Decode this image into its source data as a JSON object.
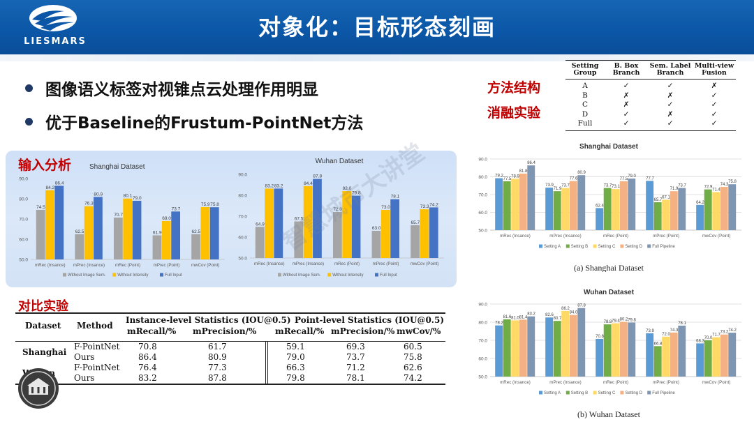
{
  "header": {
    "logo_text": "LIESMARS",
    "title": "对象化：目标形态刻画"
  },
  "bullets": [
    "图像语义标签对视锥点云处理作用明显",
    "优于Baseline的Frustum-PointNet方法"
  ],
  "labels": {
    "method_structure": "方法结构",
    "ablation_experiment": "消融实验",
    "input_analysis": "输入分析",
    "comparison_experiment": "对比实验",
    "watermark": "智慧城市大讲堂"
  },
  "ablation_table": {
    "headers": [
      "Setting Group",
      "B. Box Branch",
      "Sem. Label Branch",
      "Multi-view Fusion"
    ],
    "rows": [
      [
        "A",
        "✓",
        "✓",
        "✗"
      ],
      [
        "B",
        "✗",
        "✗",
        "✓"
      ],
      [
        "C",
        "✗",
        "✓",
        "✓"
      ],
      [
        "D",
        "✓",
        "✗",
        "✓"
      ],
      [
        "Full",
        "✓",
        "✓",
        "✓"
      ]
    ]
  },
  "comparison_table": {
    "group_headers": [
      "Instance-level Statistics (IOU@0.5)",
      "Point-level Statistics (IOU@0.5)"
    ],
    "columns": [
      "Dataset",
      "Method",
      "mRecall/%",
      "mPrecision/%",
      "mRecall/%",
      "mPrecision/%",
      "mwCov/%"
    ],
    "rows": [
      {
        "dataset": "Shanghai",
        "method": "F-PointNet",
        "values": [
          "70.8",
          "61.7",
          "59.1",
          "69.3",
          "60.5"
        ]
      },
      {
        "dataset": "",
        "method": "Ours",
        "values": [
          "86.4",
          "80.9",
          "79.0",
          "73.7",
          "75.8"
        ]
      },
      {
        "dataset": "Wuhan",
        "method": "F-PointNet",
        "values": [
          "76.4",
          "77.3",
          "66.3",
          "71.2",
          "62.6"
        ]
      },
      {
        "dataset": "",
        "method": "Ours",
        "values": [
          "83.2",
          "87.8",
          "79.8",
          "78.1",
          "74.2"
        ]
      }
    ]
  },
  "chart_data": [
    {
      "type": "bar",
      "title": "Shanghai Dataset",
      "categories": [
        "mRec (Insance)",
        "mPrec (Insance)",
        "mRec (Point)",
        "mPrec (Point)",
        "mwCov (Point)"
      ],
      "series": [
        {
          "name": "Without Image Sem.",
          "color": "#a5a5a5",
          "values": [
            74.5,
            62.5,
            70.7,
            61.9,
            62.5
          ]
        },
        {
          "name": "Without Intensity",
          "color": "#ffc000",
          "values": [
            84.2,
            76.3,
            80.1,
            69.0,
            75.9
          ]
        },
        {
          "name": "Full Input",
          "color": "#4472c4",
          "values": [
            86.4,
            80.9,
            79.0,
            73.7,
            75.8
          ]
        }
      ],
      "value_labels": [
        [
          "74.5",
          "62.5",
          "70.7",
          "61.9",
          "62.5"
        ],
        [
          "84.2",
          "76.3",
          "80.1",
          "69.0",
          "75.9"
        ],
        [
          "86.4",
          "80.9",
          "79.0",
          "73.7",
          "75.8"
        ]
      ],
      "y_ticks": [
        "50.0",
        "60.0",
        "70.0",
        "80.0",
        "90.0"
      ],
      "ylim": [
        50,
        90
      ],
      "legend": "bottom",
      "grid": false
    },
    {
      "type": "bar",
      "title": "Wuhan Dataset",
      "categories": [
        "mRec (Insance)",
        "mPrec (Insance)",
        "mRec (Point)",
        "mPrec (Point)",
        "mwCov (Point)"
      ],
      "series": [
        {
          "name": "Without Image Sem.",
          "color": "#a5a5a5",
          "values": [
            64.9,
            67.5,
            72.0,
            63.0,
            65.7
          ]
        },
        {
          "name": "Without Intensity",
          "color": "#ffc000",
          "values": [
            83.2,
            84.4,
            82.0,
            73.0,
            73.3
          ]
        },
        {
          "name": "Full Input",
          "color": "#4472c4",
          "values": [
            83.2,
            87.8,
            79.8,
            78.1,
            74.2
          ]
        }
      ],
      "value_labels": [
        [
          "64.9",
          "67.5",
          "72.0",
          "63.0",
          "65.7"
        ],
        [
          "83.2",
          "84.4",
          "82.0",
          "73.0",
          "73.3"
        ],
        [
          "83.2",
          "87.8",
          "79.8",
          "78.1",
          "74.2"
        ]
      ],
      "y_ticks": [
        "50.0",
        "60.0",
        "70.0",
        "80.0",
        "90.0"
      ],
      "ylim": [
        50,
        90
      ],
      "legend": "bottom",
      "grid": false
    },
    {
      "type": "bar",
      "title": "Shanghai Dataset",
      "caption": "(a) Shanghai Dataset",
      "categories": [
        "mRec (Insance)",
        "mPrec (Insance)",
        "mRec (Point)",
        "mPrec (Point)",
        "mwCov (Point)"
      ],
      "series": [
        {
          "name": "Setting A",
          "color": "#5b9bd5",
          "values": [
            79.2,
            73.9,
            62.4,
            77.7,
            64.2
          ]
        },
        {
          "name": "Setting B",
          "color": "#70ad47",
          "values": [
            77.5,
            71.9,
            73.7,
            65.7,
            72.9
          ]
        },
        {
          "name": "Setting C",
          "color": "#ffd966",
          "values": [
            78.9,
            73.7,
            73.1,
            67.1,
            71.4
          ]
        },
        {
          "name": "Setting D",
          "color": "#f4b183",
          "values": [
            81.8,
            77.6,
            77.5,
            71.9,
            74.3
          ]
        },
        {
          "name": "Full Pipeline",
          "color": "#7f96b2",
          "values": [
            86.4,
            80.9,
            79.0,
            73.7,
            75.8
          ]
        }
      ],
      "value_labels": [
        [
          "79.2",
          "73.9",
          "62.4",
          "77.7",
          "64.2"
        ],
        [
          "77.5",
          "71.9",
          "73.7",
          "65.7",
          "72.9"
        ],
        [
          "78.9",
          "73.7",
          "73.1",
          "67.1",
          "71.4"
        ],
        [
          "81.8",
          "77.6",
          "77.5",
          "71.9",
          "74.3"
        ],
        [
          "86.4",
          "80.9",
          "79.0",
          "73.7",
          "75.8"
        ]
      ],
      "y_ticks": [
        "50.0",
        "60.0",
        "70.0",
        "80.0",
        "90.0"
      ],
      "ylim": [
        50,
        90
      ],
      "legend": "bottom",
      "grid": true
    },
    {
      "type": "bar",
      "title": "Wuhan Dataset",
      "caption": "(b) Wuhan Dataset",
      "categories": [
        "mRec (Insance)",
        "mPrec (Insance)",
        "mRec (Point)",
        "mPrec (Point)",
        "mwCov (Point)"
      ],
      "series": [
        {
          "name": "Setting A",
          "color": "#5b9bd5",
          "values": [
            78.2,
            82.6,
            70.8,
            73.9,
            68.3
          ]
        },
        {
          "name": "Setting B",
          "color": "#70ad47",
          "values": [
            81.6,
            80.7,
            78.8,
            66.8,
            70.0
          ]
        },
        {
          "name": "Setting C",
          "color": "#ffd966",
          "values": [
            81.0,
            86.2,
            79.4,
            72.0,
            71.7
          ]
        },
        {
          "name": "Setting D",
          "color": "#f4b183",
          "values": [
            81.4,
            84.0,
            80.2,
            74.3,
            73.2
          ]
        },
        {
          "name": "Full Pipeline",
          "color": "#7f96b2",
          "values": [
            83.2,
            87.8,
            79.8,
            78.1,
            74.2
          ]
        }
      ],
      "value_labels": [
        [
          "78.2",
          "82.6",
          "70.8",
          "73.9",
          "68.3"
        ],
        [
          "81.6",
          "80.7",
          "78.8",
          "66.8",
          "70.0"
        ],
        [
          "81.0",
          "86.2",
          "79.4",
          "72.0",
          "71.7"
        ],
        [
          "81.4",
          "84.0",
          "80.2",
          "74.3",
          "73.2"
        ],
        [
          "83.2",
          "87.8",
          "79.8",
          "78.1",
          "74.2"
        ]
      ],
      "y_ticks": [
        "50.0",
        "60.0",
        "70.0",
        "80.0",
        "90.0"
      ],
      "ylim": [
        50,
        90
      ],
      "legend": "bottom",
      "grid": true
    }
  ]
}
